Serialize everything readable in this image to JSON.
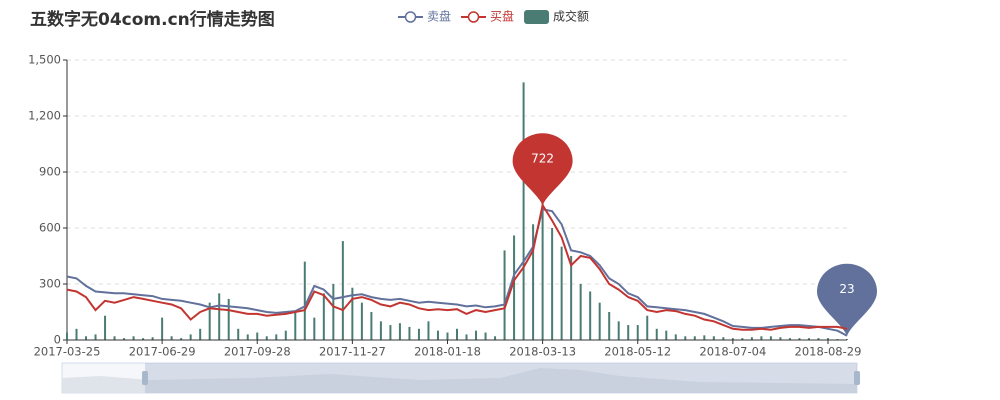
{
  "chart_data": {
    "type": "line",
    "title": "五数字无04com.cn行情走势图",
    "categories": [
      "2017-03-25",
      null,
      null,
      null,
      null,
      null,
      null,
      null,
      null,
      null,
      "2017-06-29",
      null,
      null,
      null,
      null,
      null,
      null,
      null,
      null,
      null,
      "2017-09-28",
      null,
      null,
      null,
      null,
      null,
      null,
      null,
      null,
      null,
      "2017-11-27",
      null,
      null,
      null,
      null,
      null,
      null,
      null,
      null,
      null,
      "2018-01-18",
      null,
      null,
      null,
      null,
      null,
      null,
      null,
      null,
      null,
      "2018-03-13",
      null,
      null,
      null,
      null,
      null,
      null,
      null,
      null,
      null,
      "2018-05-12",
      null,
      null,
      null,
      null,
      null,
      null,
      null,
      null,
      null,
      "2018-07-04",
      null,
      null,
      null,
      null,
      null,
      null,
      null,
      null,
      null,
      "2018-08-29",
      null,
      null
    ],
    "ylim": [
      0,
      1500
    ],
    "yticks": [
      0,
      300,
      600,
      900,
      {
        "value": 1200,
        "label": "1,200"
      },
      {
        "value": 1500,
        "label": "1,500"
      }
    ],
    "grid": true,
    "series": [
      {
        "name": "卖盘",
        "type": "line",
        "color": "#61719b",
        "mark": "min",
        "values": [
          340,
          330,
          290,
          260,
          255,
          250,
          250,
          245,
          240,
          235,
          220,
          215,
          210,
          200,
          190,
          175,
          185,
          180,
          175,
          170,
          160,
          150,
          145,
          150,
          155,
          180,
          290,
          270,
          220,
          230,
          240,
          245,
          230,
          220,
          215,
          220,
          210,
          200,
          205,
          200,
          195,
          190,
          180,
          185,
          175,
          180,
          190,
          350,
          420,
          500,
          700,
          690,
          620,
          480,
          470,
          450,
          400,
          330,
          300,
          250,
          230,
          180,
          175,
          170,
          165,
          160,
          150,
          140,
          120,
          100,
          75,
          70,
          65,
          65,
          70,
          75,
          80,
          80,
          75,
          70,
          60,
          50,
          23
        ]
      },
      {
        "name": "买盘",
        "type": "line",
        "color": "#c23531",
        "mark": "max",
        "values": [
          270,
          260,
          230,
          160,
          210,
          200,
          215,
          230,
          220,
          210,
          200,
          190,
          170,
          110,
          150,
          170,
          165,
          160,
          150,
          140,
          140,
          130,
          135,
          140,
          150,
          160,
          260,
          240,
          180,
          160,
          220,
          230,
          215,
          190,
          180,
          200,
          190,
          170,
          160,
          165,
          160,
          165,
          140,
          160,
          150,
          160,
          170,
          320,
          390,
          480,
          722,
          640,
          550,
          400,
          450,
          440,
          380,
          300,
          270,
          230,
          210,
          160,
          150,
          160,
          155,
          140,
          130,
          110,
          100,
          80,
          60,
          55,
          55,
          60,
          55,
          65,
          70,
          70,
          65,
          70,
          70,
          70,
          60
        ]
      },
      {
        "name": "成交额",
        "type": "bar",
        "color": "#4a7c74",
        "values": [
          40,
          60,
          20,
          30,
          130,
          20,
          10,
          20,
          10,
          15,
          120,
          20,
          10,
          30,
          60,
          200,
          250,
          220,
          60,
          30,
          40,
          20,
          30,
          50,
          150,
          420,
          120,
          250,
          300,
          530,
          280,
          200,
          150,
          100,
          80,
          90,
          70,
          60,
          100,
          50,
          40,
          60,
          30,
          50,
          40,
          20,
          480,
          560,
          1380,
          620,
          950,
          600,
          500,
          450,
          300,
          260,
          200,
          150,
          100,
          80,
          80,
          130,
          60,
          50,
          30,
          20,
          20,
          25,
          20,
          15,
          10,
          10,
          15,
          20,
          20,
          15,
          10,
          10,
          10,
          10,
          10,
          5,
          5
        ]
      }
    ]
  }
}
